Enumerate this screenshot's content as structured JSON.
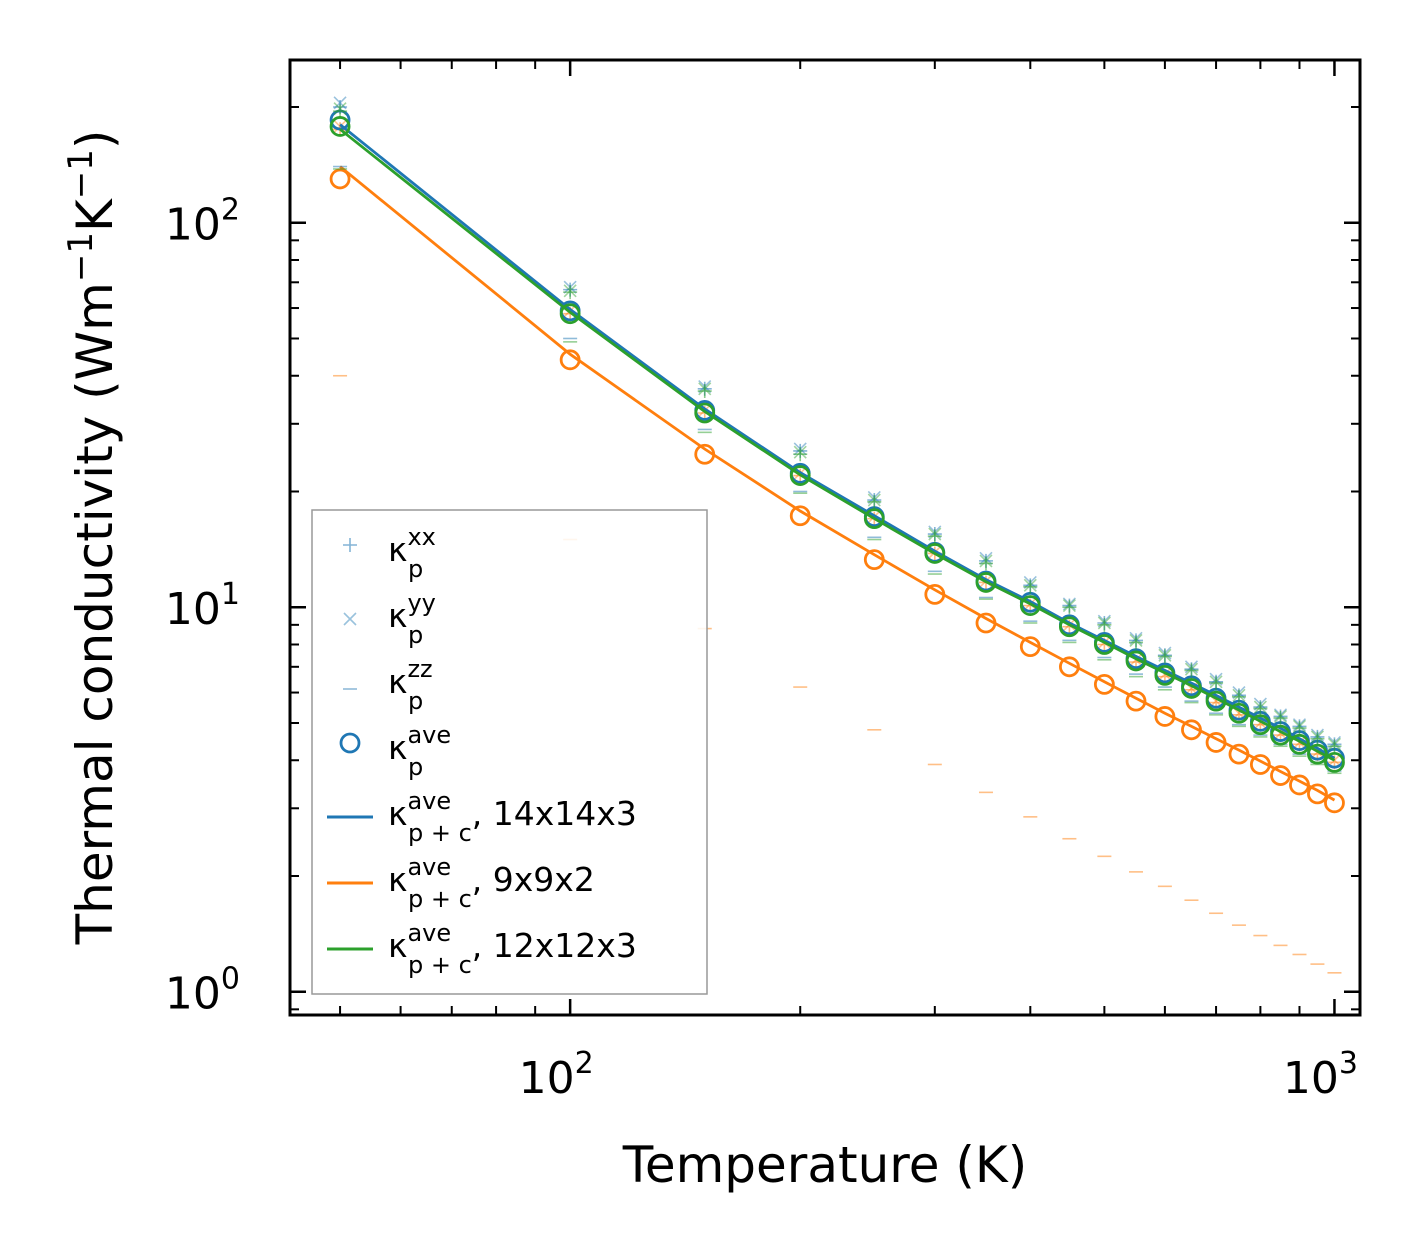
{
  "chart_data": {
    "type": "scatter",
    "scale": {
      "x": "log",
      "y": "log"
    },
    "xlim": [
      43,
      1080
    ],
    "ylim": [
      0.87,
      265
    ],
    "xlabel": "Temperature (K)",
    "ylabel_main": "Thermal conductivity (Wm",
    "ylabel_exp1": "−1",
    "ylabel_mid": "K",
    "ylabel_exp2": "−1",
    "ylabel_end": ")",
    "x_ticks": [
      {
        "value": 100,
        "base": "10",
        "exp": "2"
      },
      {
        "value": 1000,
        "base": "10",
        "exp": "3"
      }
    ],
    "y_ticks": [
      {
        "value": 1,
        "base": "10",
        "exp": "0"
      },
      {
        "value": 10,
        "base": "10",
        "exp": "1"
      },
      {
        "value": 100,
        "base": "10",
        "exp": "2"
      }
    ],
    "temperatures": [
      50,
      100,
      150,
      200,
      250,
      300,
      350,
      400,
      450,
      500,
      550,
      600,
      650,
      700,
      750,
      800,
      850,
      900,
      950,
      1000
    ],
    "series": [
      {
        "name": "14x14x3",
        "color": "#1f77b4",
        "kxx": [
          200,
          67,
          37,
          25.5,
          19,
          15.5,
          13.2,
          11.4,
          10.1,
          9.1,
          8.2,
          7.5,
          6.9,
          6.4,
          5.9,
          5.5,
          5.2,
          4.9,
          4.6,
          4.4
        ],
        "kyy": [
          205,
          68,
          37.5,
          25.8,
          19.3,
          15.7,
          13.4,
          11.6,
          10.2,
          9.2,
          8.3,
          7.6,
          7.0,
          6.5,
          6.0,
          5.6,
          5.25,
          4.95,
          4.65,
          4.45
        ],
        "kzz": [
          140,
          50,
          29,
          20,
          15.2,
          12.4,
          10.6,
          9.2,
          8.2,
          7.4,
          6.7,
          6.2,
          5.7,
          5.3,
          4.95,
          4.65,
          4.4,
          4.15,
          3.95,
          3.75
        ],
        "kave": [
          185,
          59,
          32.5,
          22.3,
          17.2,
          13.9,
          11.7,
          10.3,
          9.0,
          8.1,
          7.35,
          6.75,
          6.25,
          5.8,
          5.4,
          5.05,
          4.75,
          4.5,
          4.25,
          4.05
        ],
        "line": [
          180,
          59.5,
          32.8,
          22.4,
          17.3,
          14.0,
          11.8,
          10.35,
          9.1,
          8.2,
          7.45,
          6.85,
          6.35,
          5.9,
          5.5,
          5.15,
          4.85,
          4.55,
          4.3,
          4.05
        ]
      },
      {
        "name": "9x9x2",
        "color": "#ff7f0e",
        "kxx": [
          175,
          58,
          32,
          22,
          17,
          13.8,
          11.6,
          10.1,
          8.9,
          8.0,
          7.2,
          6.6,
          6.1,
          5.65,
          5.25,
          4.95,
          4.65,
          4.4,
          4.15,
          3.95
        ],
        "kyy": [
          178,
          59,
          32.5,
          22.3,
          17.2,
          13.9,
          11.7,
          10.2,
          9.0,
          8.1,
          7.3,
          6.7,
          6.15,
          5.7,
          5.3,
          5.0,
          4.7,
          4.45,
          4.2,
          4.0
        ],
        "kzz": [
          40,
          15,
          8.8,
          6.2,
          4.8,
          3.9,
          3.3,
          2.85,
          2.5,
          2.25,
          2.05,
          1.88,
          1.73,
          1.6,
          1.49,
          1.4,
          1.32,
          1.25,
          1.18,
          1.12
        ],
        "kave": [
          130,
          44,
          25,
          17.3,
          13.3,
          10.8,
          9.1,
          7.9,
          7.0,
          6.3,
          5.7,
          5.2,
          4.8,
          4.45,
          4.15,
          3.9,
          3.65,
          3.45,
          3.27,
          3.1
        ],
        "line": [
          140,
          45.5,
          25.8,
          17.8,
          13.7,
          11.1,
          9.35,
          8.1,
          7.15,
          6.4,
          5.8,
          5.3,
          4.9,
          4.55,
          4.25,
          3.98,
          3.74,
          3.53,
          3.34,
          3.15
        ]
      },
      {
        "name": "12x12x3",
        "color": "#2ca02c",
        "kxx": [
          195,
          66,
          36.5,
          25,
          18.8,
          15.3,
          13.0,
          11.3,
          10.0,
          9.0,
          8.1,
          7.45,
          6.85,
          6.35,
          5.85,
          5.45,
          5.15,
          4.85,
          4.55,
          4.35
        ],
        "kyy": [
          198,
          66.5,
          37,
          25.3,
          19.0,
          15.5,
          13.2,
          11.4,
          10.1,
          9.1,
          8.2,
          7.5,
          6.9,
          6.4,
          5.9,
          5.5,
          5.2,
          4.9,
          4.6,
          4.4
        ],
        "kzz": [
          138,
          49,
          28.5,
          19.8,
          15.0,
          12.2,
          10.5,
          9.1,
          8.1,
          7.3,
          6.6,
          6.1,
          5.65,
          5.25,
          4.9,
          4.6,
          4.35,
          4.1,
          3.9,
          3.7
        ],
        "kave": [
          178,
          58,
          32,
          22,
          17,
          13.8,
          11.6,
          10.1,
          8.9,
          8.0,
          7.25,
          6.65,
          6.15,
          5.7,
          5.3,
          4.95,
          4.65,
          4.4,
          4.15,
          3.95
        ],
        "line": [
          175,
          58.5,
          32.3,
          22.1,
          17.0,
          13.8,
          11.65,
          10.2,
          9.0,
          8.1,
          7.35,
          6.75,
          6.25,
          5.8,
          5.4,
          5.05,
          4.75,
          4.48,
          4.22,
          4.0
        ]
      }
    ],
    "legend": {
      "position": "center-left",
      "entries": [
        {
          "marker": "plus",
          "label": "κ",
          "sup": "xx",
          "sub": "p",
          "suffix": ""
        },
        {
          "marker": "cross",
          "label": "κ",
          "sup": "yy",
          "sub": "p",
          "suffix": ""
        },
        {
          "marker": "dash",
          "label": "κ",
          "sup": "zz",
          "sub": "p",
          "suffix": ""
        },
        {
          "marker": "circle",
          "label": "κ",
          "sup": "ave",
          "sub": "p",
          "suffix": ""
        },
        {
          "marker": "line",
          "color": "#1f77b4",
          "label": "κ",
          "sup": "ave",
          "sub": "p + c",
          "suffix": ", 14x14x3"
        },
        {
          "marker": "line",
          "color": "#ff7f0e",
          "label": "κ",
          "sup": "ave",
          "sub": "p + c",
          "suffix": ", 9x9x2"
        },
        {
          "marker": "line",
          "color": "#2ca02c",
          "label": "κ",
          "sup": "ave",
          "sub": "p + c",
          "suffix": ", 12x12x3"
        }
      ]
    }
  }
}
